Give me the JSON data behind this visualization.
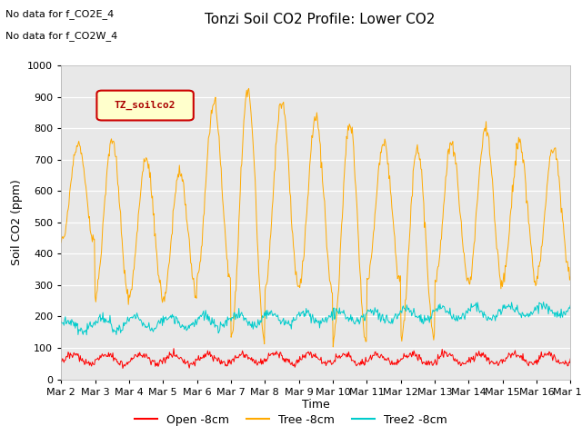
{
  "title": "Tonzi Soil CO2 Profile: Lower CO2",
  "ylabel": "Soil CO2 (ppm)",
  "xlabel": "Time",
  "ylim": [
    0,
    1000
  ],
  "yticks": [
    0,
    100,
    200,
    300,
    400,
    500,
    600,
    700,
    800,
    900,
    1000
  ],
  "xtick_labels": [
    "Mar 2",
    "Mar 3",
    "Mar 4",
    "Mar 5",
    "Mar 6",
    "Mar 7",
    "Mar 8",
    "Mar 9",
    "Mar 10",
    "Mar 11",
    "Mar 12",
    "Mar 13",
    "Mar 14",
    "Mar 15",
    "Mar 16",
    "Mar 17"
  ],
  "annotations": [
    "No data for f_CO2E_4",
    "No data for f_CO2W_4"
  ],
  "legend_label": "TZ_soilco2",
  "series_labels": [
    "Open -8cm",
    "Tree -8cm",
    "Tree2 -8cm"
  ],
  "series_colors": [
    "#ff0000",
    "#ffaa00",
    "#00cccc"
  ],
  "background_color": "#e8e8e8",
  "title_fontsize": 11,
  "axis_fontsize": 9,
  "tick_fontsize": 8,
  "annot_fontsize": 8
}
